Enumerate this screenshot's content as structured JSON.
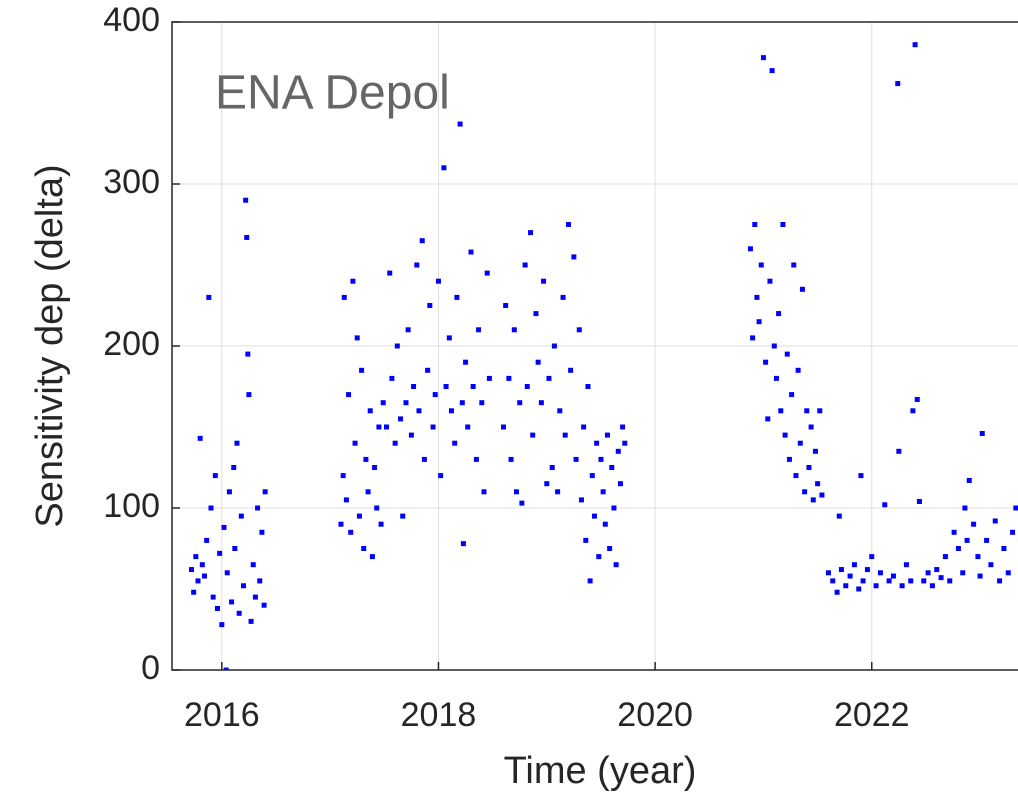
{
  "chart_data": {
    "type": "scatter",
    "title": "ENA Depol",
    "xlabel": "Time (year)",
    "ylabel": "Sensitivity dep (delta)",
    "color": "#0000ff",
    "grid": true,
    "xlim": [
      2015.54,
      2023.35
    ],
    "ylim": [
      0,
      400
    ],
    "xticks": [
      2016,
      2018,
      2020,
      2022
    ],
    "yticks": [
      0,
      100,
      200,
      300,
      400
    ],
    "x": [
      2015.72,
      2015.74,
      2015.76,
      2015.78,
      2015.8,
      2015.82,
      2015.84,
      2015.86,
      2015.88,
      2015.9,
      2015.92,
      2015.94,
      2015.96,
      2015.98,
      2016.0,
      2016.02,
      2016.04,
      2016.05,
      2016.07,
      2016.09,
      2016.11,
      2016.12,
      2016.14,
      2016.16,
      2016.18,
      2016.2,
      2016.22,
      2016.23,
      2016.24,
      2016.25,
      2016.27,
      2016.29,
      2016.31,
      2016.33,
      2016.35,
      2016.37,
      2016.39,
      2016.4,
      2017.1,
      2017.12,
      2017.13,
      2017.15,
      2017.17,
      2017.19,
      2017.21,
      2017.23,
      2017.25,
      2017.27,
      2017.29,
      2017.31,
      2017.33,
      2017.35,
      2017.37,
      2017.39,
      2017.41,
      2017.43,
      2017.45,
      2017.47,
      2017.49,
      2017.52,
      2017.55,
      2017.57,
      2017.6,
      2017.62,
      2017.65,
      2017.67,
      2017.7,
      2017.72,
      2017.75,
      2017.77,
      2017.8,
      2017.82,
      2017.85,
      2017.87,
      2017.9,
      2017.92,
      2017.95,
      2017.97,
      2018.0,
      2018.02,
      2018.05,
      2018.07,
      2018.1,
      2018.12,
      2018.15,
      2018.17,
      2018.2,
      2018.22,
      2018.23,
      2018.25,
      2018.27,
      2018.3,
      2018.32,
      2018.35,
      2018.37,
      2018.4,
      2018.42,
      2018.45,
      2018.47,
      2018.6,
      2018.62,
      2018.65,
      2018.67,
      2018.7,
      2018.72,
      2018.75,
      2018.77,
      2018.8,
      2018.82,
      2018.85,
      2018.87,
      2018.9,
      2018.92,
      2018.95,
      2018.97,
      2019.0,
      2019.02,
      2019.05,
      2019.07,
      2019.1,
      2019.12,
      2019.15,
      2019.17,
      2019.2,
      2019.22,
      2019.25,
      2019.27,
      2019.3,
      2019.32,
      2019.34,
      2019.36,
      2019.38,
      2019.4,
      2019.42,
      2019.44,
      2019.46,
      2019.48,
      2019.5,
      2019.52,
      2019.54,
      2019.56,
      2019.58,
      2019.6,
      2019.62,
      2019.64,
      2019.66,
      2019.68,
      2019.7,
      2019.72,
      2020.88,
      2020.9,
      2020.92,
      2020.94,
      2020.96,
      2020.98,
      2021.0,
      2021.02,
      2021.04,
      2021.06,
      2021.08,
      2021.1,
      2021.12,
      2021.14,
      2021.16,
      2021.18,
      2021.2,
      2021.22,
      2021.24,
      2021.26,
      2021.28,
      2021.3,
      2021.32,
      2021.34,
      2021.36,
      2021.38,
      2021.4,
      2021.42,
      2021.44,
      2021.46,
      2021.48,
      2021.5,
      2021.52,
      2021.54,
      2021.6,
      2021.64,
      2021.68,
      2021.7,
      2021.72,
      2021.76,
      2021.8,
      2021.84,
      2021.88,
      2021.9,
      2021.92,
      2021.96,
      2022.0,
      2022.04,
      2022.08,
      2022.12,
      2022.16,
      2022.2,
      2022.24,
      2022.25,
      2022.28,
      2022.32,
      2022.36,
      2022.38,
      2022.4,
      2022.42,
      2022.44,
      2022.48,
      2022.52,
      2022.56,
      2022.6,
      2022.64,
      2022.68,
      2022.72,
      2022.76,
      2022.8,
      2022.84,
      2022.86,
      2022.88,
      2022.9,
      2022.94,
      2022.98,
      2023.0,
      2023.02,
      2023.06,
      2023.1,
      2023.14,
      2023.18,
      2023.22,
      2023.26,
      2023.3,
      2023.33
    ],
    "values": [
      62,
      48,
      70,
      55,
      143,
      65,
      58,
      80,
      230,
      100,
      45,
      120,
      38,
      72,
      28,
      88,
      0,
      60,
      110,
      42,
      125,
      75,
      140,
      35,
      95,
      52,
      290,
      267,
      195,
      170,
      30,
      65,
      45,
      100,
      55,
      85,
      40,
      110,
      90,
      120,
      230,
      105,
      170,
      85,
      240,
      140,
      205,
      95,
      185,
      75,
      130,
      110,
      160,
      70,
      125,
      100,
      150,
      90,
      165,
      150,
      245,
      180,
      140,
      200,
      155,
      95,
      165,
      210,
      145,
      175,
      250,
      160,
      265,
      130,
      185,
      225,
      150,
      170,
      240,
      120,
      310,
      175,
      205,
      160,
      140,
      230,
      337,
      165,
      78,
      190,
      150,
      258,
      175,
      130,
      210,
      165,
      110,
      245,
      180,
      150,
      225,
      180,
      130,
      210,
      110,
      165,
      103,
      250,
      175,
      270,
      145,
      220,
      190,
      165,
      240,
      115,
      180,
      125,
      200,
      110,
      160,
      230,
      145,
      275,
      185,
      255,
      130,
      210,
      105,
      150,
      80,
      175,
      55,
      120,
      95,
      140,
      70,
      130,
      110,
      90,
      145,
      75,
      125,
      100,
      65,
      135,
      115,
      150,
      140,
      260,
      205,
      275,
      230,
      215,
      250,
      378,
      190,
      155,
      240,
      370,
      200,
      180,
      220,
      160,
      275,
      145,
      195,
      130,
      170,
      250,
      120,
      185,
      140,
      235,
      110,
      160,
      125,
      150,
      105,
      135,
      115,
      160,
      108,
      60,
      55,
      48,
      95,
      62,
      52,
      58,
      65,
      50,
      120,
      55,
      62,
      70,
      52,
      60,
      102,
      55,
      58,
      362,
      135,
      52,
      65,
      55,
      160,
      386,
      167,
      104,
      55,
      60,
      52,
      62,
      57,
      70,
      55,
      85,
      75,
      60,
      100,
      80,
      117,
      90,
      70,
      58,
      146,
      80,
      65,
      92,
      55,
      75,
      60,
      85,
      100
    ]
  }
}
